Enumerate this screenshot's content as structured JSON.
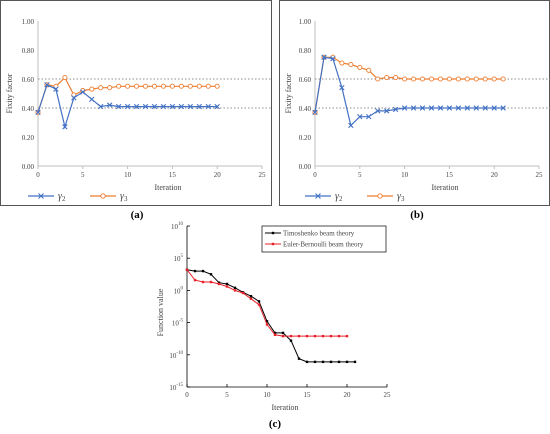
{
  "captions": {
    "a": "(a)",
    "b": "(b)",
    "c": "(c)"
  },
  "colors": {
    "gamma2": "#4472C4",
    "gamma3": "#ED7D31",
    "timoshenko": "#000000",
    "euler": "#E8202A",
    "ref": "#8c8c8c"
  },
  "chart_data": [
    {
      "type": "line",
      "xlabel": "Iteration",
      "ylabel": "Fixity factor",
      "xlim": [
        0,
        25
      ],
      "ylim": [
        0,
        1.0
      ],
      "xticks": [
        0,
        5,
        10,
        15,
        20,
        25
      ],
      "yticks": [
        "0.00",
        "0.20",
        "0.40",
        "0.60",
        "0.80",
        "1.00"
      ],
      "ref_lines": [
        0.4,
        0.6
      ],
      "ref_labels": [
        "0.40",
        "0.60"
      ],
      "legend": "bottom",
      "series": [
        {
          "name": "γ2",
          "marker": "x",
          "x": [
            0,
            1,
            2,
            3,
            4,
            5,
            6,
            7,
            8,
            9,
            10,
            11,
            12,
            13,
            14,
            15,
            16,
            17,
            18,
            19,
            20
          ],
          "values": [
            0.37,
            0.56,
            0.53,
            0.27,
            0.47,
            0.51,
            0.46,
            0.41,
            0.42,
            0.41,
            0.41,
            0.41,
            0.41,
            0.41,
            0.41,
            0.41,
            0.41,
            0.41,
            0.41,
            0.41,
            0.41
          ]
        },
        {
          "name": "γ3",
          "marker": "o",
          "x": [
            0,
            1,
            2,
            3,
            4,
            5,
            6,
            7,
            8,
            9,
            10,
            11,
            12,
            13,
            14,
            15,
            16,
            17,
            18,
            19,
            20
          ],
          "values": [
            0.37,
            0.56,
            0.55,
            0.61,
            0.49,
            0.52,
            0.53,
            0.54,
            0.54,
            0.55,
            0.55,
            0.55,
            0.55,
            0.55,
            0.55,
            0.55,
            0.55,
            0.55,
            0.55,
            0.55,
            0.55
          ]
        }
      ]
    },
    {
      "type": "line",
      "xlabel": "Iteration",
      "ylabel": "Fixity factor",
      "xlim": [
        0,
        25
      ],
      "ylim": [
        0,
        1.0
      ],
      "xticks": [
        0,
        5,
        10,
        15,
        20,
        25
      ],
      "yticks": [
        "0.00",
        "0.20",
        "0.40",
        "0.60",
        "0.80",
        "1.00"
      ],
      "ref_lines": [
        0.4,
        0.6
      ],
      "ref_labels": [
        "0.40",
        "0.60"
      ],
      "legend": "bottom",
      "series": [
        {
          "name": "γ2",
          "marker": "x",
          "x": [
            0,
            1,
            2,
            3,
            4,
            5,
            6,
            7,
            8,
            9,
            10,
            11,
            12,
            13,
            14,
            15,
            16,
            17,
            18,
            19,
            20,
            21
          ],
          "values": [
            0.37,
            0.75,
            0.74,
            0.54,
            0.28,
            0.34,
            0.34,
            0.38,
            0.38,
            0.39,
            0.4,
            0.4,
            0.4,
            0.4,
            0.4,
            0.4,
            0.4,
            0.4,
            0.4,
            0.4,
            0.4,
            0.4
          ]
        },
        {
          "name": "γ3",
          "marker": "o",
          "x": [
            0,
            1,
            2,
            3,
            4,
            5,
            6,
            7,
            8,
            9,
            10,
            11,
            12,
            13,
            14,
            15,
            16,
            17,
            18,
            19,
            20,
            21
          ],
          "values": [
            0.37,
            0.75,
            0.75,
            0.71,
            0.7,
            0.68,
            0.66,
            0.6,
            0.61,
            0.61,
            0.6,
            0.6,
            0.6,
            0.6,
            0.6,
            0.6,
            0.6,
            0.6,
            0.6,
            0.6,
            0.6,
            0.6
          ]
        }
      ]
    },
    {
      "type": "line",
      "xlabel": "Iteration",
      "ylabel": "Function value",
      "xlim": [
        0,
        25
      ],
      "ylim_log10": [
        -15,
        10
      ],
      "xticks": [
        0,
        5,
        10,
        15,
        20,
        25
      ],
      "ytick_exponents": [
        10,
        5,
        0,
        -5,
        -10,
        -15
      ],
      "legend": "top-right",
      "series": [
        {
          "name": "Timoshenko beam theory",
          "x": [
            0,
            1,
            2,
            3,
            4,
            5,
            6,
            7,
            8,
            9,
            10,
            11,
            12,
            13,
            14,
            15,
            16,
            17,
            18,
            19,
            20,
            21
          ],
          "log10_values": [
            3.2,
            3.0,
            3.0,
            2.5,
            1.2,
            1.0,
            0.4,
            -0.3,
            -0.9,
            -1.7,
            -4.8,
            -6.6,
            -6.6,
            -7.8,
            -10.6,
            -11.1,
            -11.1,
            -11.1,
            -11.1,
            -11.1,
            -11.1,
            -11.1
          ]
        },
        {
          "name": "Euler-Bernoulli beam theory",
          "x": [
            0,
            1,
            2,
            3,
            4,
            5,
            6,
            7,
            8,
            9,
            10,
            11,
            12,
            13,
            14,
            15,
            16,
            17,
            18,
            19,
            20
          ],
          "log10_values": [
            3.2,
            1.6,
            1.3,
            1.3,
            1.0,
            0.6,
            0.0,
            -0.4,
            -1.3,
            -2.2,
            -5.3,
            -6.9,
            -7.1,
            -7.1,
            -7.1,
            -7.1,
            -7.1,
            -7.1,
            -7.1,
            -7.1,
            -7.1
          ]
        }
      ]
    }
  ]
}
